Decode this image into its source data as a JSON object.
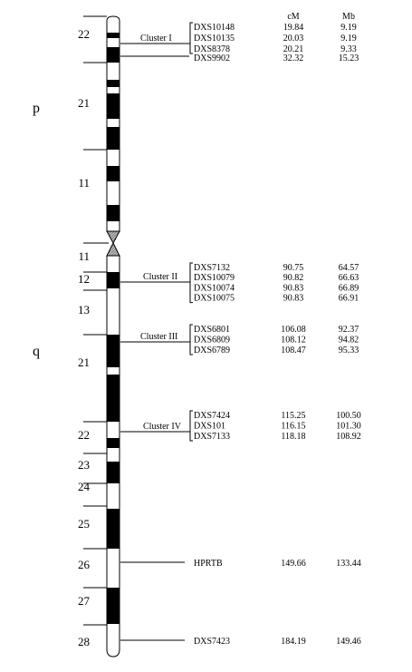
{
  "figure": {
    "arm_labels": {
      "p": "p",
      "q": "q"
    },
    "column_headers": {
      "cm": "cM",
      "mb": "Mb"
    },
    "band_labels": [
      "22",
      "21",
      "11",
      "11",
      "12",
      "13",
      "21",
      "22",
      "23",
      "24",
      "25",
      "26",
      "27",
      "28"
    ],
    "clusters": [
      {
        "label": "Cluster I",
        "markers": [
          {
            "name": "DXS10148",
            "cm": "19.84",
            "mb": "9.19"
          },
          {
            "name": "DXS10135",
            "cm": "20.03",
            "mb": "9.19"
          },
          {
            "name": "DXS8378",
            "cm": "20.21",
            "mb": "9.33"
          }
        ]
      },
      {
        "label": "Cluster II",
        "markers": [
          {
            "name": "DXS7132",
            "cm": "90.75",
            "mb": "64.57"
          },
          {
            "name": "DXS10079",
            "cm": "90.82",
            "mb": "66.63"
          },
          {
            "name": "DXS10074",
            "cm": "90.83",
            "mb": "66.89"
          },
          {
            "name": "DXS10075",
            "cm": "90.83",
            "mb": "66.91"
          }
        ]
      },
      {
        "label": "Cluster III",
        "markers": [
          {
            "name": "DXS6801",
            "cm": "106.08",
            "mb": "92.37"
          },
          {
            "name": "DXS6809",
            "cm": "108.12",
            "mb": "94.82"
          },
          {
            "name": "DXS6789",
            "cm": "108.47",
            "mb": "95.33"
          }
        ]
      },
      {
        "label": "Cluster IV",
        "markers": [
          {
            "name": "DXS7424",
            "cm": "115.25",
            "mb": "100.50"
          },
          {
            "name": "DXS101",
            "cm": "116.15",
            "mb": "101.30"
          },
          {
            "name": "DXS7133",
            "cm": "118.18",
            "mb": "108.92"
          }
        ]
      }
    ],
    "single_markers": [
      {
        "name": "DXS9902",
        "cm": "32.32",
        "mb": "15.23"
      },
      {
        "name": "HPRTB",
        "cm": "149.66",
        "mb": "133.44"
      },
      {
        "name": "DXS7423",
        "cm": "184.19",
        "mb": "149.46"
      }
    ]
  }
}
